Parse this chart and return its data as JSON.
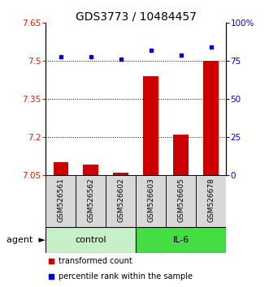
{
  "title": "GDS3773 / 10484457",
  "samples": [
    "GSM526561",
    "GSM526562",
    "GSM526602",
    "GSM526603",
    "GSM526605",
    "GSM526678"
  ],
  "red_values": [
    7.1,
    7.09,
    7.06,
    7.44,
    7.21,
    7.5
  ],
  "blue_values": [
    78,
    78,
    76,
    82,
    79,
    84
  ],
  "ylim_left": [
    7.05,
    7.65
  ],
  "ylim_right": [
    0,
    100
  ],
  "yticks_left": [
    7.05,
    7.2,
    7.35,
    7.5,
    7.65
  ],
  "ytick_labels_left": [
    "7.05",
    "7.2",
    "7.35",
    "7.5",
    "7.65"
  ],
  "yticks_right": [
    0,
    25,
    50,
    75,
    100
  ],
  "ytick_labels_right": [
    "0",
    "25",
    "50",
    "75",
    "100%"
  ],
  "hlines": [
    7.2,
    7.35,
    7.5
  ],
  "control_color": "#c8f0c8",
  "il6_color": "#44dd44",
  "bar_color": "#cc0000",
  "dot_color": "#0000cc",
  "bar_width": 0.5,
  "legend_red": "transformed count",
  "legend_blue": "percentile rank within the sample",
  "left_tick_color": "#cc2200",
  "right_tick_color": "#0000cc",
  "title_fontsize": 10,
  "tick_fontsize": 7.5,
  "sample_fontsize": 6.5,
  "group_fontsize": 8,
  "legend_fontsize": 7
}
